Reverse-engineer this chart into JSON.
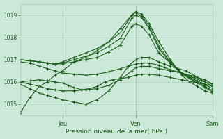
{
  "bg_color": "#cce8d8",
  "plot_bg_color": "#cce8d8",
  "grid_color": "#aaccb8",
  "line_color": "#1a5c1a",
  "xlabel": "Pression niveau de la mer( hPa )",
  "ylim": [
    1014.5,
    1019.5
  ],
  "yticks": [
    1015,
    1016,
    1017,
    1018,
    1019
  ],
  "figsize": [
    3.2,
    2.0
  ],
  "dpi": 100,
  "series": [
    {
      "x": [
        0.0,
        0.05,
        0.1,
        0.14,
        0.18,
        0.22,
        0.28,
        0.34,
        0.4,
        0.46,
        0.52,
        0.58,
        0.6,
        0.63,
        0.67,
        0.72,
        0.78,
        0.84,
        0.88,
        0.92,
        0.96,
        1.0
      ],
      "y": [
        1014.6,
        1015.3,
        1015.8,
        1016.0,
        1016.3,
        1016.5,
        1016.9,
        1017.1,
        1017.4,
        1017.8,
        1018.4,
        1019.0,
        1019.15,
        1019.05,
        1018.6,
        1017.8,
        1017.0,
        1016.3,
        1016.0,
        1015.8,
        1015.6,
        1015.5
      ]
    },
    {
      "x": [
        0.0,
        0.05,
        0.1,
        0.14,
        0.18,
        0.22,
        0.28,
        0.34,
        0.4,
        0.46,
        0.52,
        0.58,
        0.6,
        0.63,
        0.67,
        0.72,
        0.78,
        0.84,
        0.88,
        0.92,
        0.96,
        1.0
      ],
      "y": [
        1017.0,
        1016.95,
        1016.9,
        1016.85,
        1016.8,
        1016.9,
        1017.1,
        1017.3,
        1017.5,
        1017.8,
        1018.2,
        1019.0,
        1019.1,
        1018.95,
        1018.5,
        1017.6,
        1016.9,
        1016.4,
        1016.2,
        1016.0,
        1015.8,
        1015.6
      ]
    },
    {
      "x": [
        0.0,
        0.05,
        0.1,
        0.14,
        0.18,
        0.22,
        0.28,
        0.34,
        0.4,
        0.46,
        0.52,
        0.58,
        0.6,
        0.63,
        0.67,
        0.72,
        0.78,
        0.84,
        0.88,
        0.92,
        0.96,
        1.0
      ],
      "y": [
        1017.0,
        1016.95,
        1016.9,
        1016.85,
        1016.8,
        1016.85,
        1017.0,
        1017.15,
        1017.3,
        1017.6,
        1017.95,
        1018.85,
        1019.0,
        1018.88,
        1018.4,
        1017.5,
        1016.85,
        1016.35,
        1016.15,
        1015.95,
        1015.75,
        1015.55
      ]
    },
    {
      "x": [
        0.0,
        0.05,
        0.1,
        0.14,
        0.18,
        0.22,
        0.28,
        0.34,
        0.4,
        0.46,
        0.52,
        0.58,
        0.6,
        0.63,
        0.67,
        0.72,
        0.78,
        0.84,
        0.88,
        0.92,
        0.96,
        1.0
      ],
      "y": [
        1017.0,
        1016.95,
        1016.9,
        1016.85,
        1016.8,
        1016.82,
        1016.9,
        1017.0,
        1017.1,
        1017.35,
        1017.65,
        1018.5,
        1018.6,
        1018.5,
        1018.1,
        1017.3,
        1016.85,
        1016.4,
        1016.22,
        1016.05,
        1015.88,
        1015.7
      ]
    },
    {
      "x": [
        0.0,
        0.05,
        0.1,
        0.14,
        0.18,
        0.22,
        0.28,
        0.34,
        0.4,
        0.46,
        0.52,
        0.56,
        0.6,
        0.63,
        0.67,
        0.72,
        0.75,
        0.78,
        0.82,
        0.86,
        0.9,
        0.94,
        1.0
      ],
      "y": [
        1015.9,
        1015.7,
        1015.5,
        1015.4,
        1015.3,
        1015.2,
        1015.1,
        1015.0,
        1015.2,
        1015.6,
        1016.2,
        1016.7,
        1017.0,
        1017.1,
        1017.1,
        1016.9,
        1016.8,
        1016.7,
        1016.6,
        1016.5,
        1016.3,
        1016.1,
        1015.8
      ]
    },
    {
      "x": [
        0.0,
        0.05,
        0.1,
        0.14,
        0.18,
        0.22,
        0.28,
        0.34,
        0.4,
        0.46,
        0.52,
        0.58,
        0.6,
        0.63,
        0.67,
        0.72,
        0.78,
        0.84,
        0.88,
        0.92,
        0.96,
        1.0
      ],
      "y": [
        1016.0,
        1015.9,
        1015.8,
        1015.7,
        1015.65,
        1015.6,
        1015.6,
        1015.65,
        1015.7,
        1015.85,
        1016.1,
        1016.5,
        1016.65,
        1016.7,
        1016.7,
        1016.6,
        1016.5,
        1016.4,
        1016.3,
        1016.2,
        1016.1,
        1015.9
      ]
    },
    {
      "x": [
        0.0,
        0.05,
        0.1,
        0.14,
        0.18,
        0.22,
        0.28,
        0.34,
        0.4,
        0.46,
        0.52,
        0.56,
        0.6,
        0.63,
        0.67,
        0.72,
        0.75,
        0.78,
        0.82,
        0.84,
        0.86,
        0.9,
        0.94,
        1.0
      ],
      "y": [
        1016.9,
        1016.85,
        1016.7,
        1016.6,
        1016.5,
        1016.4,
        1016.35,
        1016.3,
        1016.35,
        1016.45,
        1016.6,
        1016.7,
        1016.8,
        1016.85,
        1016.85,
        1016.75,
        1016.65,
        1016.55,
        1016.45,
        1016.4,
        1016.3,
        1016.2,
        1016.05,
        1015.9
      ]
    },
    {
      "x": [
        0.0,
        0.05,
        0.1,
        0.14,
        0.18,
        0.22,
        0.25,
        0.28,
        0.32,
        0.36,
        0.4,
        0.44,
        0.48,
        0.52,
        0.56,
        0.6,
        0.63,
        0.67,
        0.72,
        0.78,
        0.84,
        0.9,
        0.96,
        1.0
      ],
      "y": [
        1016.0,
        1016.05,
        1016.1,
        1016.05,
        1016.0,
        1015.95,
        1015.85,
        1015.75,
        1015.65,
        1015.7,
        1015.8,
        1016.0,
        1016.1,
        1016.15,
        1016.2,
        1016.3,
        1016.35,
        1016.35,
        1016.3,
        1016.2,
        1016.1,
        1016.0,
        1015.9,
        1015.8
      ]
    }
  ]
}
